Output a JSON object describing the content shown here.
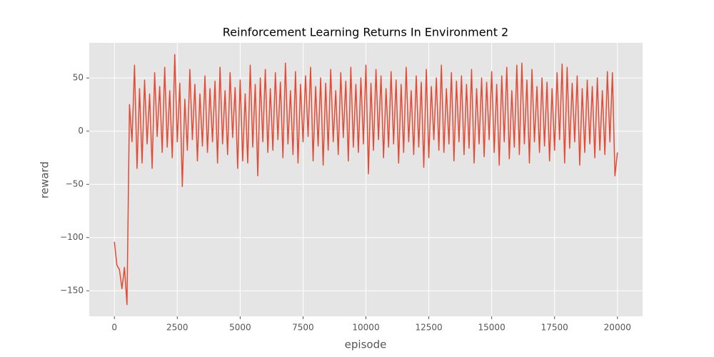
{
  "chart_data": {
    "type": "line",
    "title": "Reinforcement Learning Returns In Environment 2",
    "x_label": "episode",
    "y_label": "reward",
    "x": [
      0,
      100,
      200,
      300,
      400,
      500,
      600,
      700,
      800,
      900,
      1000,
      1100,
      1200,
      1300,
      1400,
      1500,
      1600,
      1700,
      1800,
      1900,
      2000,
      2100,
      2200,
      2300,
      2400,
      2500,
      2600,
      2700,
      2800,
      2900,
      3000,
      3100,
      3200,
      3300,
      3400,
      3500,
      3600,
      3700,
      3800,
      3900,
      4000,
      4100,
      4200,
      4300,
      4400,
      4500,
      4600,
      4700,
      4800,
      4900,
      5000,
      5100,
      5200,
      5300,
      5400,
      5500,
      5600,
      5700,
      5800,
      5900,
      6000,
      6100,
      6200,
      6300,
      6400,
      6500,
      6600,
      6700,
      6800,
      6900,
      7000,
      7100,
      7200,
      7300,
      7400,
      7500,
      7600,
      7700,
      7800,
      7900,
      8000,
      8100,
      8200,
      8300,
      8400,
      8500,
      8600,
      8700,
      8800,
      8900,
      9000,
      9100,
      9200,
      9300,
      9400,
      9500,
      9600,
      9700,
      9800,
      9900,
      10000,
      10100,
      10200,
      10300,
      10400,
      10500,
      10600,
      10700,
      10800,
      10900,
      11000,
      11100,
      11200,
      11300,
      11400,
      11500,
      11600,
      11700,
      11800,
      11900,
      12000,
      12100,
      12200,
      12300,
      12400,
      12500,
      12600,
      12700,
      12800,
      12900,
      13000,
      13100,
      13200,
      13300,
      13400,
      13500,
      13600,
      13700,
      13800,
      13900,
      14000,
      14100,
      14200,
      14300,
      14400,
      14500,
      14600,
      14700,
      14800,
      14900,
      15000,
      15100,
      15200,
      15300,
      15400,
      15500,
      15600,
      15700,
      15800,
      15900,
      16000,
      16100,
      16200,
      16300,
      16400,
      16500,
      16600,
      16700,
      16800,
      16900,
      17000,
      17100,
      17200,
      17300,
      17400,
      17500,
      17600,
      17700,
      17800,
      17900,
      18000,
      18100,
      18200,
      18300,
      18400,
      18500,
      18600,
      18700,
      18800,
      18900,
      19000,
      19100,
      19200,
      19300,
      19400,
      19500,
      19600,
      19700,
      19800,
      19900,
      20000
    ],
    "series": [
      {
        "name": "reward",
        "color": "#e24a33",
        "values": [
          -104,
          -126,
          -130,
          -148,
          -128,
          -163,
          25,
          -10,
          62,
          -35,
          40,
          -30,
          48,
          -12,
          35,
          -35,
          55,
          -5,
          42,
          -20,
          60,
          -15,
          38,
          -25,
          72,
          -10,
          45,
          -52,
          30,
          -18,
          58,
          -8,
          44,
          -28,
          35,
          -14,
          52,
          -20,
          40,
          -10,
          47,
          -30,
          60,
          -12,
          38,
          -22,
          55,
          -6,
          41,
          -35,
          48,
          -28,
          35,
          -30,
          62,
          -15,
          44,
          -42,
          50,
          -10,
          58,
          -20,
          40,
          -18,
          55,
          -8,
          46,
          -25,
          64,
          -12,
          38,
          -22,
          56,
          -30,
          44,
          -10,
          52,
          -5,
          60,
          -28,
          42,
          -14,
          50,
          -32,
          45,
          -18,
          58,
          -10,
          38,
          -22,
          55,
          -6,
          47,
          -28,
          60,
          -15,
          44,
          -20,
          50,
          -12,
          62,
          -40,
          45,
          -18,
          58,
          -8,
          52,
          -25,
          40,
          -15,
          56,
          -12,
          48,
          -30,
          44,
          -20,
          60,
          -10,
          38,
          -22,
          52,
          -15,
          46,
          -34,
          58,
          -25,
          42,
          -8,
          50,
          -18,
          62,
          -20,
          40,
          -12,
          55,
          -28,
          47,
          -10,
          52,
          -22,
          44,
          -16,
          58,
          -30,
          40,
          -12,
          50,
          -24,
          46,
          -8,
          56,
          -20,
          44,
          -32,
          52,
          -10,
          60,
          -26,
          38,
          -15,
          62,
          -22,
          64,
          -12,
          48,
          -30,
          58,
          -10,
          42,
          -20,
          50,
          -14,
          46,
          -28,
          40,
          -18,
          55,
          -8,
          63,
          -30,
          60,
          -16,
          45,
          -10,
          52,
          -32,
          40,
          -20,
          48,
          -12,
          42,
          -25,
          50,
          -18,
          38,
          -22,
          56,
          -10,
          55,
          -42,
          -20
        ]
      }
    ],
    "xlim": [
      -1000,
      21000
    ],
    "xticks": [
      0,
      2500,
      5000,
      7500,
      10000,
      12500,
      15000,
      17500,
      20000
    ],
    "ylim": [
      -174,
      83
    ],
    "yticks": [
      {
        "value": -150,
        "label": "−150"
      },
      {
        "value": -100,
        "label": "−100"
      },
      {
        "value": -50,
        "label": "−50"
      },
      0,
      50
    ],
    "grid": true
  }
}
